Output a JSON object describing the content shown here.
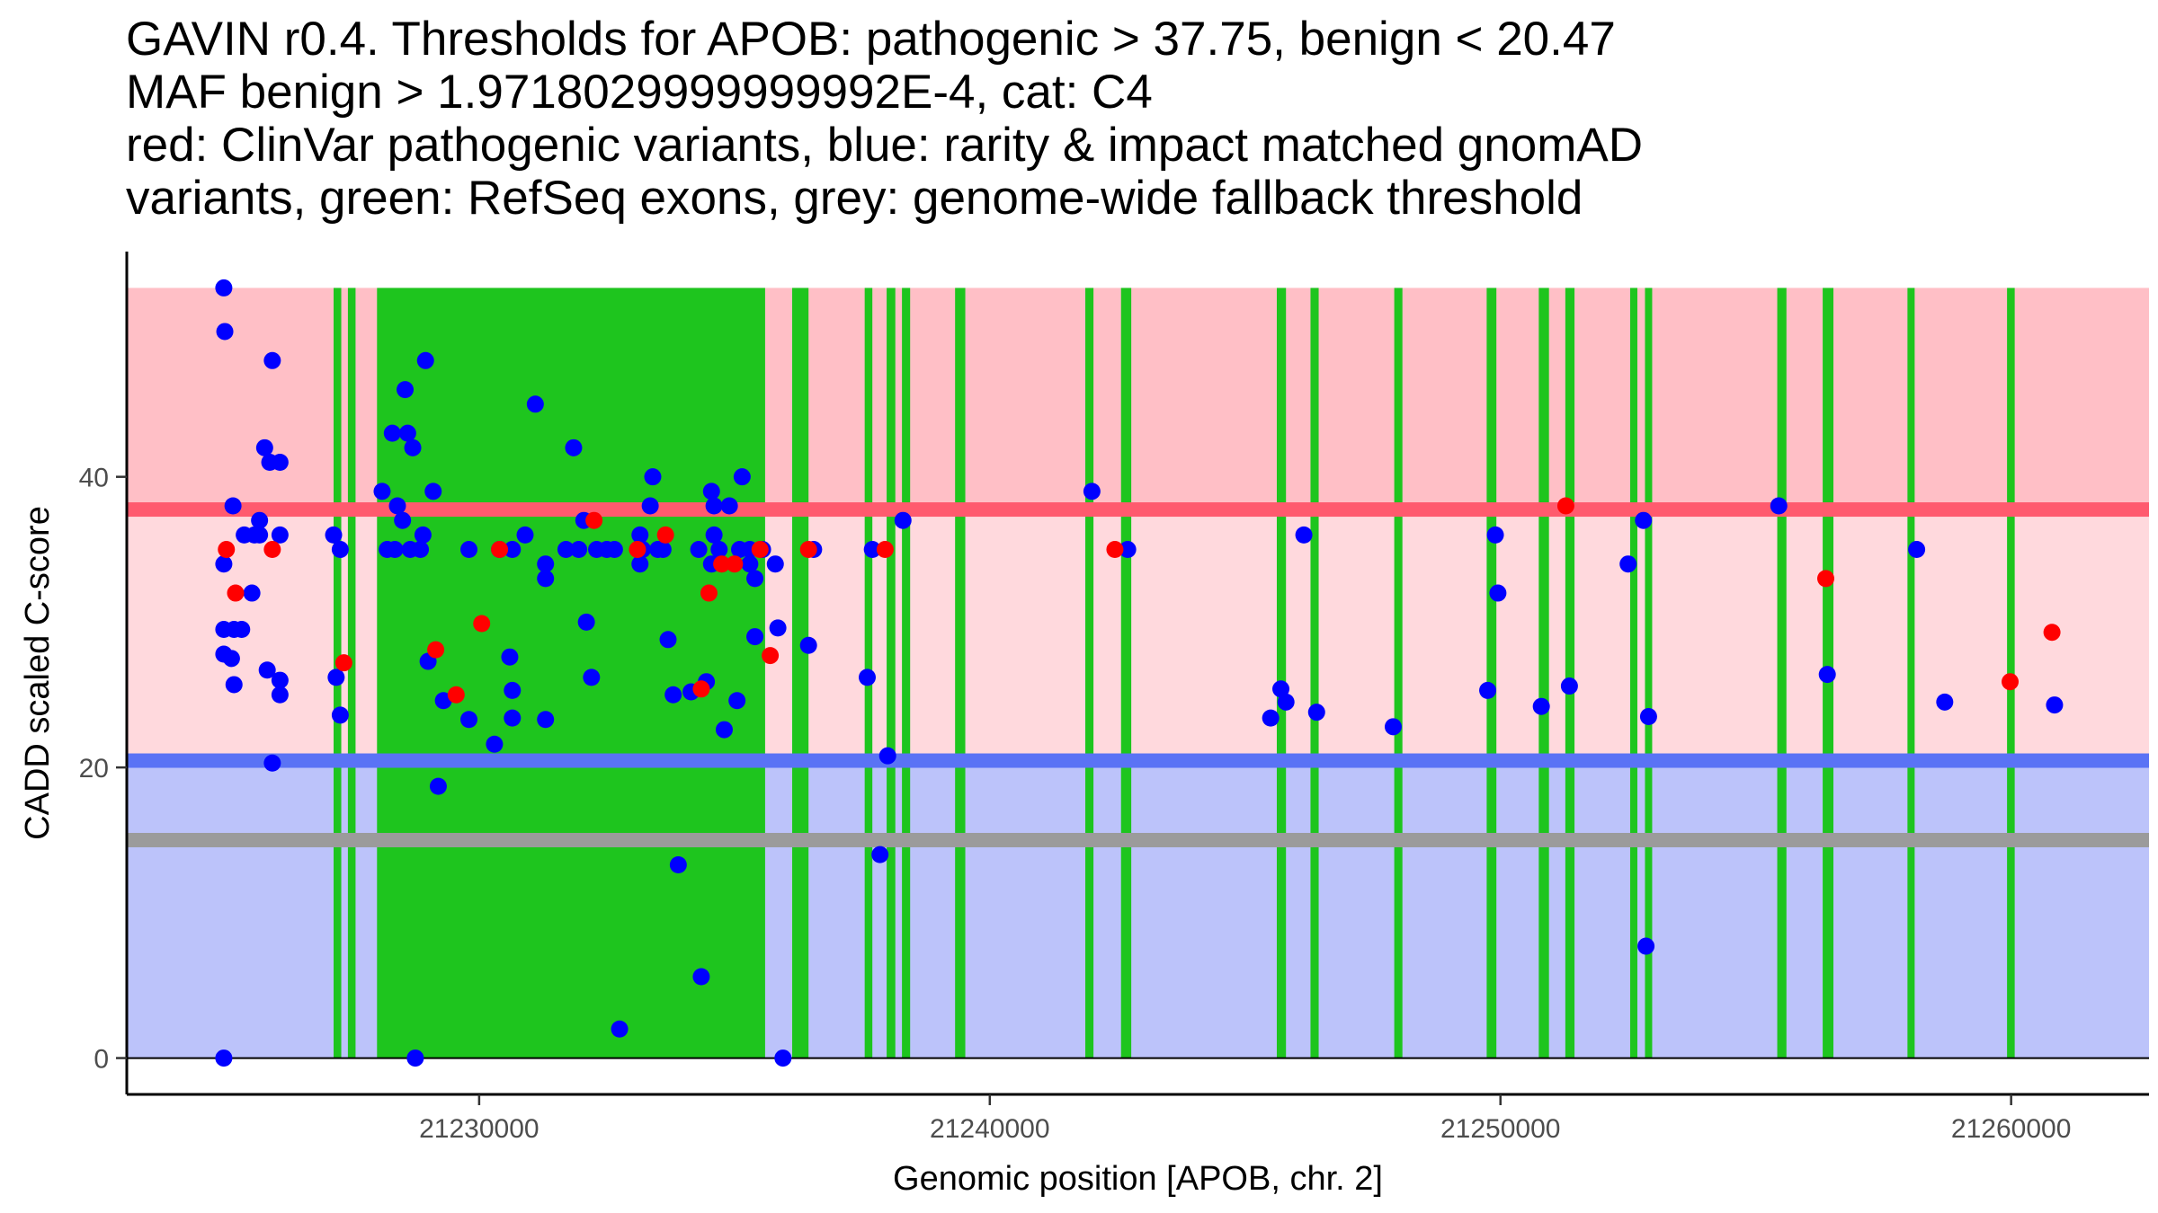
{
  "chart_data": {
    "type": "scatter",
    "title_lines": [
      "GAVIN r0.4. Thresholds for APOB: pathogenic > 37.75, benign < 20.47",
      "MAF benign > 1.9718029999999992E-4, cat: C4",
      "red: ClinVar pathogenic variants, blue: rarity & impact matched gnomAD",
      "variants, green: RefSeq exons, grey: genome-wide fallback threshold"
    ],
    "xlabel": "Genomic position [APOB, chr. 2]",
    "ylabel": "CADD scaled C-score",
    "xlim": [
      21223100,
      21262700
    ],
    "ylim": [
      -2.5,
      55.5
    ],
    "x_ticks": [
      21230000,
      21240000,
      21250000,
      21260000
    ],
    "y_ticks": [
      0,
      20,
      40
    ],
    "grid": false,
    "thresholds": {
      "pathogenic": 37.75,
      "benign": 20.47,
      "fallback": 15,
      "max_score": 53
    },
    "colors": {
      "pathogenic_zone": "#ffbfc6",
      "middle_zone": "#ffd9dd",
      "benign_zone": "#bcc3fa",
      "pathogenic_line": "#ff5a6e",
      "benign_line": "#5a73f5",
      "fallback_line": "#9b9b9b",
      "exon": "#1ec51e",
      "pathogenic_point": "#ff0000",
      "gnomad_point": "#0000ff"
    },
    "exons": [
      [
        21227150,
        21227300
      ],
      [
        21227430,
        21227580
      ],
      [
        21228000,
        21235600
      ],
      [
        21236130,
        21236450
      ],
      [
        21237550,
        21237700
      ],
      [
        21237980,
        21238150
      ],
      [
        21238280,
        21238440
      ],
      [
        21239320,
        21239520
      ],
      [
        21241870,
        21242030
      ],
      [
        21242570,
        21242770
      ],
      [
        21245620,
        21245800
      ],
      [
        21246280,
        21246440
      ],
      [
        21247920,
        21248080
      ],
      [
        21249730,
        21249920
      ],
      [
        21250750,
        21250950
      ],
      [
        21251270,
        21251450
      ],
      [
        21252540,
        21252680
      ],
      [
        21252830,
        21252950
      ],
      [
        21255420,
        21255600
      ],
      [
        21256310,
        21256520
      ],
      [
        21257970,
        21258100
      ],
      [
        21259920,
        21260070
      ]
    ],
    "series": [
      {
        "name": "ClinVar pathogenic",
        "color": "#ff0000",
        "points": [
          [
            21225050,
            35
          ],
          [
            21225230,
            32
          ],
          [
            21225950,
            35
          ],
          [
            21227350,
            27.2
          ],
          [
            21229150,
            28.1
          ],
          [
            21229550,
            25
          ],
          [
            21230050,
            29.9
          ],
          [
            21230400,
            35
          ],
          [
            21232250,
            37
          ],
          [
            21233100,
            35
          ],
          [
            21233650,
            36
          ],
          [
            21234350,
            25.4
          ],
          [
            21234500,
            32
          ],
          [
            21234750,
            34
          ],
          [
            21235000,
            34
          ],
          [
            21235500,
            35
          ],
          [
            21235700,
            27.7
          ],
          [
            21236450,
            35
          ],
          [
            21237950,
            35
          ],
          [
            21242450,
            35
          ],
          [
            21251280,
            38
          ],
          [
            21256370,
            33
          ],
          [
            21259980,
            25.9
          ],
          [
            21260800,
            29.3
          ]
        ]
      },
      {
        "name": "gnomAD matched",
        "color": "#0000ff",
        "points": [
          [
            21225000,
            53
          ],
          [
            21225020,
            50
          ],
          [
            21225000,
            34
          ],
          [
            21225000,
            29.5
          ],
          [
            21225000,
            27.8
          ],
          [
            21225000,
            0
          ],
          [
            21225150,
            27.5
          ],
          [
            21225180,
            38
          ],
          [
            21225200,
            25.7
          ],
          [
            21225200,
            29.5
          ],
          [
            21225350,
            29.5
          ],
          [
            21225400,
            36
          ],
          [
            21225550,
            32
          ],
          [
            21225600,
            36
          ],
          [
            21225700,
            37
          ],
          [
            21225700,
            36
          ],
          [
            21225800,
            42
          ],
          [
            21225850,
            26.7
          ],
          [
            21225900,
            41
          ],
          [
            21225950,
            48
          ],
          [
            21225950,
            20.3
          ],
          [
            21226100,
            41
          ],
          [
            21226100,
            36
          ],
          [
            21226100,
            26
          ],
          [
            21226100,
            25
          ],
          [
            21227150,
            36
          ],
          [
            21227200,
            26.2
          ],
          [
            21227280,
            35
          ],
          [
            21227280,
            23.6
          ],
          [
            21228100,
            39
          ],
          [
            21228200,
            35
          ],
          [
            21228300,
            43
          ],
          [
            21228350,
            35
          ],
          [
            21228400,
            38
          ],
          [
            21228500,
            37
          ],
          [
            21228550,
            46
          ],
          [
            21228600,
            43
          ],
          [
            21228650,
            35
          ],
          [
            21228700,
            42
          ],
          [
            21228750,
            0
          ],
          [
            21228850,
            35
          ],
          [
            21228900,
            36
          ],
          [
            21228950,
            48
          ],
          [
            21229000,
            27.3
          ],
          [
            21229100,
            39
          ],
          [
            21229200,
            18.7
          ],
          [
            21229300,
            24.6
          ],
          [
            21229800,
            35
          ],
          [
            21229800,
            23.3
          ],
          [
            21230300,
            21.6
          ],
          [
            21230400,
            35
          ],
          [
            21230600,
            27.6
          ],
          [
            21230650,
            35
          ],
          [
            21230650,
            25.3
          ],
          [
            21230650,
            23.4
          ],
          [
            21230900,
            36
          ],
          [
            21231100,
            45
          ],
          [
            21231300,
            34
          ],
          [
            21231300,
            33
          ],
          [
            21231300,
            23.3
          ],
          [
            21231700,
            35
          ],
          [
            21231850,
            42
          ],
          [
            21231950,
            35
          ],
          [
            21232050,
            37
          ],
          [
            21232100,
            30
          ],
          [
            21232200,
            26.2
          ],
          [
            21232300,
            35
          ],
          [
            21232500,
            35
          ],
          [
            21232650,
            35
          ],
          [
            21232750,
            2
          ],
          [
            21233150,
            36
          ],
          [
            21233150,
            34
          ],
          [
            21233200,
            35
          ],
          [
            21233350,
            38
          ],
          [
            21233400,
            40
          ],
          [
            21233500,
            35
          ],
          [
            21233600,
            35
          ],
          [
            21233700,
            28.8
          ],
          [
            21233800,
            25
          ],
          [
            21233900,
            13.3
          ],
          [
            21234150,
            25.2
          ],
          [
            21234300,
            35
          ],
          [
            21234350,
            5.6
          ],
          [
            21234450,
            25.9
          ],
          [
            21234550,
            39
          ],
          [
            21234550,
            34
          ],
          [
            21234600,
            38
          ],
          [
            21234600,
            36
          ],
          [
            21234700,
            35
          ],
          [
            21234800,
            22.6
          ],
          [
            21234900,
            38
          ],
          [
            21235050,
            24.6
          ],
          [
            21235100,
            35
          ],
          [
            21235150,
            40
          ],
          [
            21235300,
            35
          ],
          [
            21235300,
            34
          ],
          [
            21235400,
            29
          ],
          [
            21235400,
            33
          ],
          [
            21235550,
            35
          ],
          [
            21235800,
            34
          ],
          [
            21235850,
            29.6
          ],
          [
            21235950,
            0
          ],
          [
            21236450,
            28.4
          ],
          [
            21236550,
            35
          ],
          [
            21237600,
            26.2
          ],
          [
            21237700,
            35
          ],
          [
            21237850,
            14
          ],
          [
            21238000,
            20.8
          ],
          [
            21238300,
            37
          ],
          [
            21242000,
            39
          ],
          [
            21242700,
            35
          ],
          [
            21245500,
            23.4
          ],
          [
            21245700,
            25.4
          ],
          [
            21245800,
            24.5
          ],
          [
            21246150,
            36
          ],
          [
            21246400,
            23.8
          ],
          [
            21247900,
            22.8
          ],
          [
            21249750,
            25.3
          ],
          [
            21249900,
            36
          ],
          [
            21249950,
            32
          ],
          [
            21250800,
            24.2
          ],
          [
            21251350,
            25.6
          ],
          [
            21252500,
            34
          ],
          [
            21252800,
            37
          ],
          [
            21252850,
            7.7
          ],
          [
            21252900,
            23.5
          ],
          [
            21255450,
            38
          ],
          [
            21256400,
            26.4
          ],
          [
            21258150,
            35
          ],
          [
            21258700,
            24.5
          ],
          [
            21260850,
            24.3
          ]
        ]
      }
    ]
  }
}
